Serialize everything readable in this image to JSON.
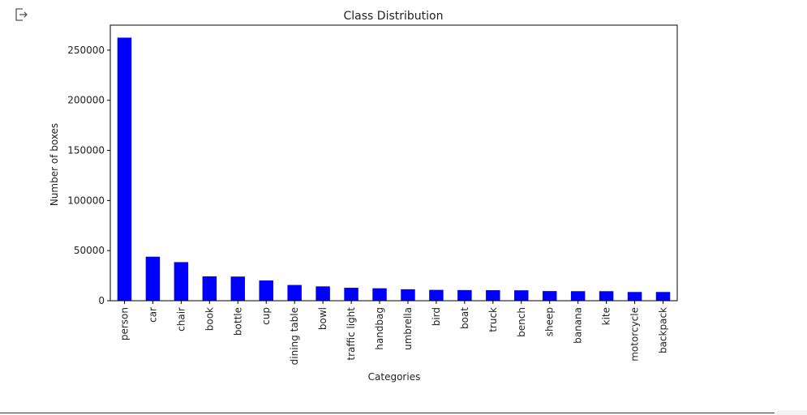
{
  "output_icon": "output-arrow-icon",
  "chart_data": {
    "type": "bar",
    "title": "Class Distribution",
    "xlabel": "Categories",
    "ylabel": "Number of boxes",
    "categories": [
      "person",
      "car",
      "chair",
      "book",
      "bottle",
      "cup",
      "dining table",
      "bowl",
      "traffic light",
      "handbag",
      "umbrella",
      "bird",
      "boat",
      "truck",
      "bench",
      "sheep",
      "banana",
      "kite",
      "motorcycle",
      "backpack"
    ],
    "values": [
      262500,
      43900,
      38500,
      24300,
      24100,
      20200,
      15700,
      14300,
      12900,
      12400,
      11400,
      10800,
      10600,
      10500,
      10400,
      9600,
      9500,
      9500,
      8700,
      8700
    ],
    "ylim": [
      0,
      275000
    ],
    "yticks": [
      0,
      50000,
      100000,
      150000,
      200000,
      250000
    ],
    "bar_color": "#0000ff",
    "grid": false,
    "legend": "none"
  }
}
